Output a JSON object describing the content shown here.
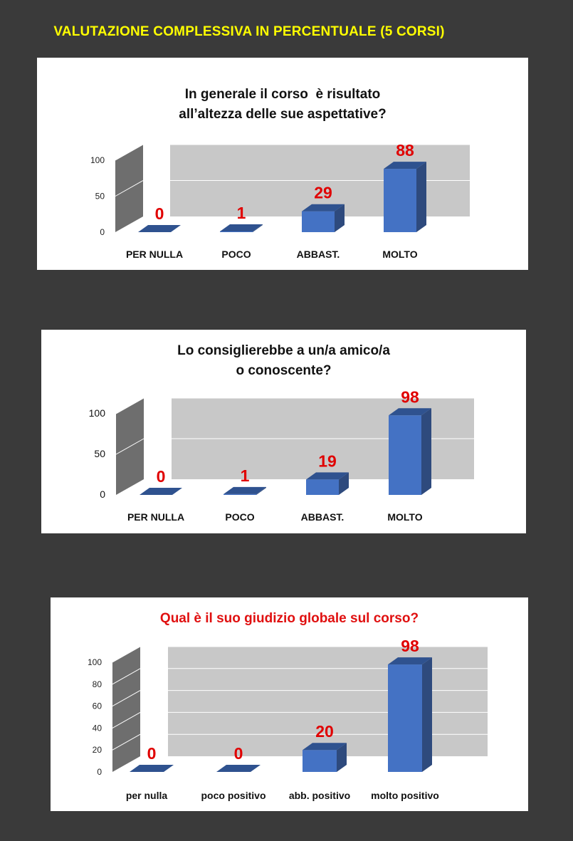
{
  "page_title": "VALUTAZIONE COMPLESSIVA IN PERCENTUALE (5 CORSI)",
  "colors": {
    "background": "#3a3a3a",
    "title": "#ffff00",
    "bar_front": "#4472c4",
    "bar_top": "#2f528f",
    "bar_side": "#2e4a7d",
    "label": "#e00000",
    "plot_back": "#c8c8c8"
  },
  "chart_data": [
    {
      "type": "bar",
      "title_lines": [
        "In generale il corso  è risultato",
        "all’altezza delle sue aspettative?"
      ],
      "categories": [
        "PER NULLA",
        "POCO",
        "ABBAST.",
        "MOLTO"
      ],
      "values": [
        0,
        1,
        29,
        88
      ],
      "yticks": [
        "0",
        "50",
        "100"
      ],
      "ylim": [
        0,
        100
      ],
      "grid": true,
      "legend": "none"
    },
    {
      "type": "bar",
      "title_lines": [
        "Lo consiglierebbe a un/a amico/a",
        "o conoscente?"
      ],
      "categories": [
        "PER NULLA",
        "POCO",
        "ABBAST.",
        "MOLTO"
      ],
      "values": [
        0,
        1,
        19,
        98
      ],
      "yticks": [
        "0",
        "50",
        "100"
      ],
      "ylim": [
        0,
        100
      ],
      "grid": true,
      "legend": "none"
    },
    {
      "type": "bar",
      "title_lines": [
        "Qual è il suo giudizio globale sul corso?"
      ],
      "categories": [
        "per nulla",
        "poco positivo",
        "abb. positivo",
        "molto positivo"
      ],
      "values": [
        0,
        0,
        20,
        98
      ],
      "yticks": [
        "0",
        "20",
        "40",
        "60",
        "80",
        "100"
      ],
      "ylim": [
        0,
        100
      ],
      "grid": true,
      "legend": "none"
    }
  ]
}
